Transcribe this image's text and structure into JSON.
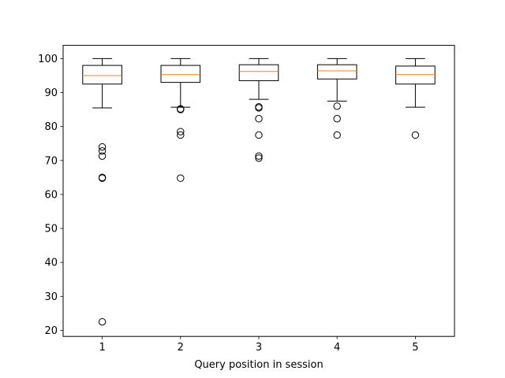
{
  "chart_data": {
    "type": "boxplot",
    "title": "",
    "xlabel": "Query position in session",
    "ylabel": "",
    "categories": [
      "1",
      "2",
      "3",
      "4",
      "5"
    ],
    "ylim": [
      18.2,
      103.9
    ],
    "yticks": [
      20,
      30,
      40,
      50,
      60,
      70,
      80,
      90,
      100
    ],
    "grid": false,
    "series": [
      {
        "category": "1",
        "whisker_low": 85.5,
        "q1": 92.5,
        "median": 95.0,
        "q3": 98.0,
        "whisker_high": 100.0,
        "outliers": [
          74.0,
          72.8,
          71.3,
          65.0,
          64.8,
          22.5
        ]
      },
      {
        "category": "2",
        "whisker_low": 85.7,
        "q1": 93.0,
        "median": 95.3,
        "q3": 98.0,
        "whisker_high": 100.0,
        "outliers": [
          85.2,
          85.0,
          78.5,
          77.5,
          64.8
        ]
      },
      {
        "category": "3",
        "whisker_low": 88.0,
        "q1": 93.5,
        "median": 96.2,
        "q3": 98.2,
        "whisker_high": 100.0,
        "outliers": [
          85.8,
          85.5,
          82.3,
          77.5,
          71.3,
          70.7
        ]
      },
      {
        "category": "4",
        "whisker_low": 87.5,
        "q1": 94.0,
        "median": 96.4,
        "q3": 98.2,
        "whisker_high": 100.0,
        "outliers": [
          86.0,
          82.3,
          77.5
        ]
      },
      {
        "category": "5",
        "whisker_low": 85.7,
        "q1": 92.5,
        "median": 95.3,
        "q3": 97.8,
        "whisker_high": 100.0,
        "outliers": [
          77.5
        ]
      }
    ],
    "colors": {
      "box": "#000000",
      "median": "#ff7f0e",
      "outlier": "#000000"
    }
  }
}
